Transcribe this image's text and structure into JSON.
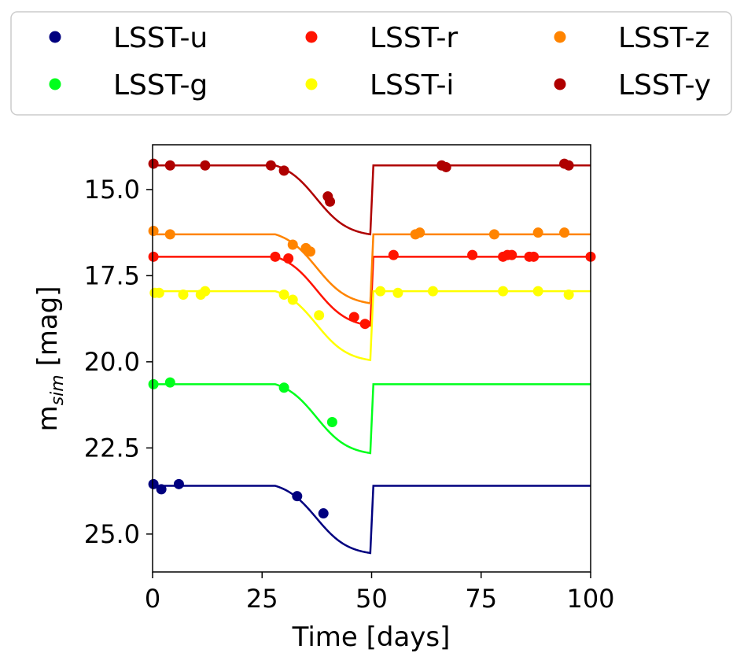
{
  "chart_data": {
    "type": "scatter",
    "xlabel": "Time [days]",
    "ylabel": "m",
    "ylabel_sub": "sim",
    "ylabel_unit": " [mag]",
    "xlim": [
      0,
      100
    ],
    "ylim": [
      26.1,
      13.7
    ],
    "y_inverted": true,
    "grid": false,
    "legend_position": "top, outside plot, 3 columns",
    "x_ticks": [
      0,
      25,
      50,
      75,
      100
    ],
    "x_tick_labels": [
      "0",
      "25",
      "50",
      "75",
      "100"
    ],
    "y_ticks": [
      15.0,
      17.5,
      20.0,
      22.5,
      25.0
    ],
    "y_tick_labels": [
      "15.0",
      "17.5",
      "20.0",
      "22.5",
      "25.0"
    ],
    "model": {
      "shape": "baseline, dimming toward day 50 then sharp return",
      "dip_start": 28,
      "dip_end": 49.7,
      "recovery_end": 50.4
    },
    "series": [
      {
        "name": "LSST-u",
        "color": "#00007f",
        "baseline": 23.6,
        "minimum": 25.55,
        "points": [
          [
            0.2,
            23.55
          ],
          [
            2,
            23.7
          ],
          [
            6,
            23.55
          ],
          [
            33,
            23.9
          ],
          [
            39,
            24.4
          ]
        ]
      },
      {
        "name": "LSST-g",
        "color": "#00ff1c",
        "baseline": 20.65,
        "minimum": 22.65,
        "points": [
          [
            0.2,
            20.65
          ],
          [
            4,
            20.6
          ],
          [
            30,
            20.75
          ],
          [
            41,
            21.75
          ]
        ]
      },
      {
        "name": "LSST-r",
        "color": "#ff1300",
        "baseline": 16.95,
        "minimum": 18.95,
        "points": [
          [
            0.2,
            16.95
          ],
          [
            28,
            16.95
          ],
          [
            31,
            17.0
          ],
          [
            46,
            18.7
          ],
          [
            48.5,
            18.9
          ],
          [
            55,
            16.9
          ],
          [
            73,
            16.9
          ],
          [
            80,
            16.95
          ],
          [
            81,
            16.9
          ],
          [
            82,
            16.9
          ],
          [
            86,
            16.95
          ],
          [
            87,
            16.95
          ],
          [
            100,
            16.95
          ]
        ]
      },
      {
        "name": "LSST-i",
        "color": "#ffff00",
        "baseline": 17.95,
        "minimum": 19.95,
        "points": [
          [
            0.5,
            18.0
          ],
          [
            1.5,
            18.0
          ],
          [
            7,
            18.05
          ],
          [
            11,
            18.05
          ],
          [
            12,
            17.95
          ],
          [
            30,
            18.05
          ],
          [
            32,
            18.2
          ],
          [
            38,
            18.65
          ],
          [
            52,
            17.95
          ],
          [
            56,
            18.0
          ],
          [
            64,
            17.95
          ],
          [
            80,
            17.95
          ],
          [
            88,
            17.95
          ],
          [
            95,
            18.05
          ]
        ]
      },
      {
        "name": "LSST-z",
        "color": "#ff8400",
        "baseline": 16.3,
        "minimum": 18.3,
        "points": [
          [
            0.2,
            16.2
          ],
          [
            4,
            16.3
          ],
          [
            32,
            16.6
          ],
          [
            35,
            16.7
          ],
          [
            36,
            16.8
          ],
          [
            60,
            16.3
          ],
          [
            61,
            16.25
          ],
          [
            78,
            16.3
          ],
          [
            88,
            16.25
          ],
          [
            94,
            16.25
          ]
        ]
      },
      {
        "name": "LSST-y",
        "color": "#af0000",
        "baseline": 14.3,
        "minimum": 16.3,
        "points": [
          [
            0.2,
            14.25
          ],
          [
            4,
            14.3
          ],
          [
            12,
            14.3
          ],
          [
            27,
            14.3
          ],
          [
            30,
            14.45
          ],
          [
            40,
            15.2
          ],
          [
            40.5,
            15.35
          ],
          [
            66,
            14.3
          ],
          [
            67,
            14.35
          ],
          [
            94,
            14.25
          ],
          [
            95,
            14.3
          ]
        ]
      }
    ]
  }
}
